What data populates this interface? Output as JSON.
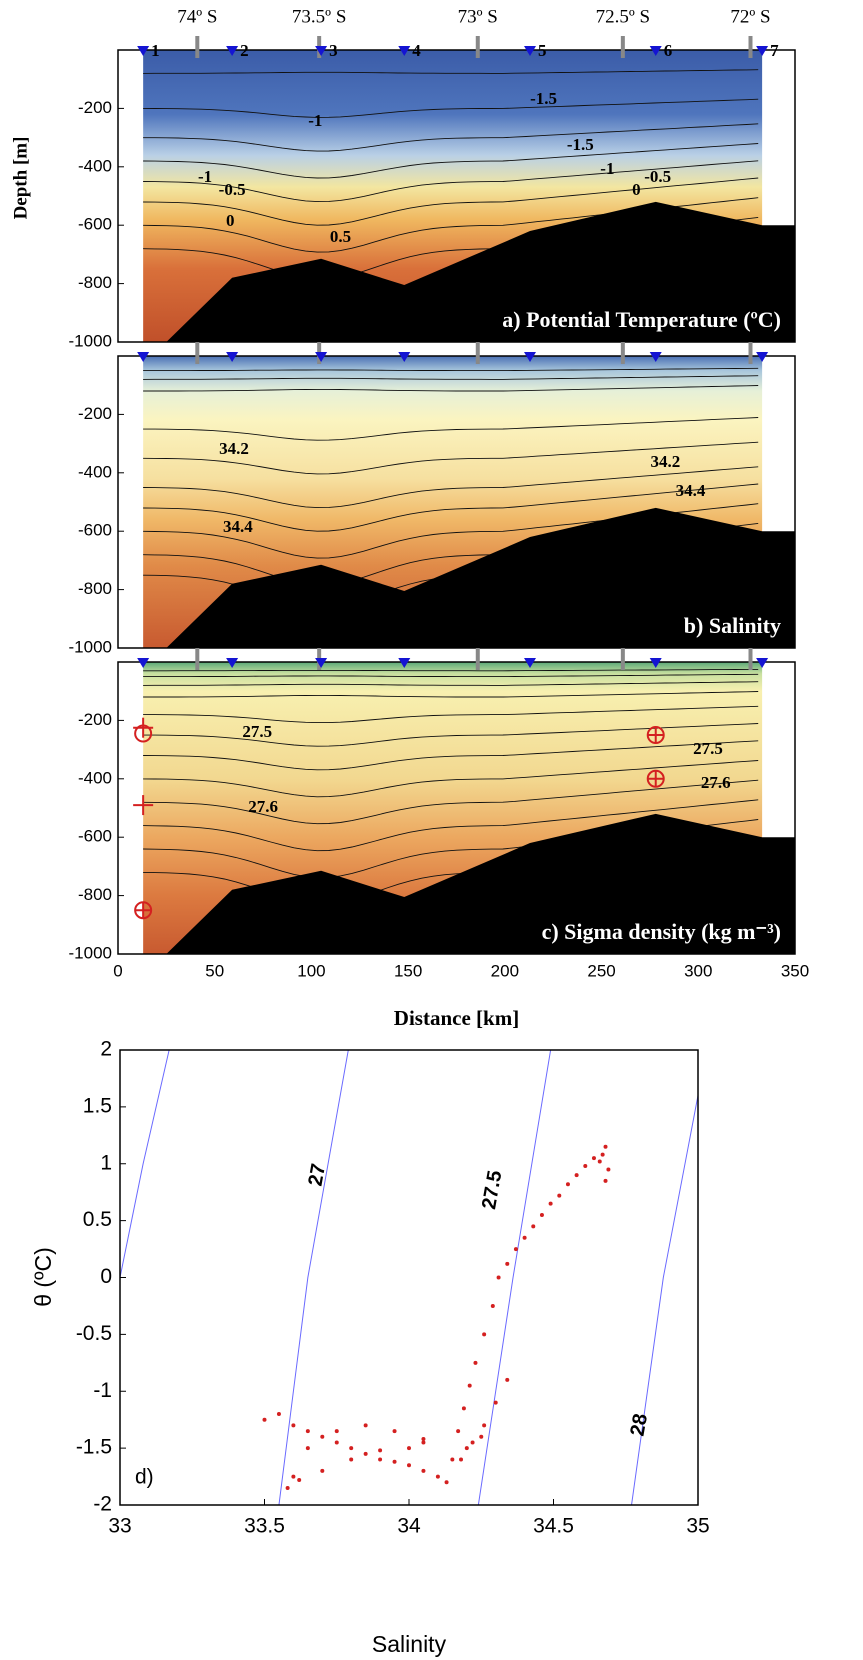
{
  "chart_data": [
    {
      "type": "contour",
      "title": "a) Potential Temperature (ºC)",
      "ylabel": "Depth [m]",
      "xlim": [
        0,
        350
      ],
      "ylim": [
        -1000,
        0
      ],
      "yticks": [
        -200,
        -400,
        -600,
        -800,
        -1000
      ],
      "x2ticks": [
        {
          "value": 41,
          "label": "74º S"
        },
        {
          "value": 104,
          "label": "73.5º S"
        },
        {
          "value": 186,
          "label": "73º S"
        },
        {
          "value": 261,
          "label": "72.5º S"
        },
        {
          "value": 327,
          "label": "72º S"
        }
      ],
      "stations": {
        "names": [
          "1",
          "2",
          "3",
          "4",
          "5",
          "6",
          "7"
        ],
        "x": [
          13,
          59,
          105,
          148,
          213,
          278,
          333
        ],
        "color": "#1414d2"
      },
      "bathymetry": {
        "x": [
          25,
          59,
          105,
          148,
          213,
          278,
          333,
          350
        ],
        "depth": [
          -1000,
          -780,
          -715,
          -805,
          -620,
          -520,
          -600,
          -600
        ]
      },
      "contour_labels": [
        "-1",
        "-1.5",
        "-1.5",
        "-1",
        "-0.5",
        "0",
        "0.5",
        "-1",
        "-0.5",
        "0"
      ]
    },
    {
      "type": "contour",
      "title": "b) Salinity",
      "xlim": [
        0,
        350
      ],
      "ylim": [
        -1000,
        0
      ],
      "yticks": [
        -200,
        -400,
        -600,
        -800,
        -1000
      ],
      "contour_labels": [
        "34.2",
        "34.4",
        "34.2",
        "34.4"
      ]
    },
    {
      "type": "contour",
      "title": "c) Sigma density (kg m⁻³)",
      "xlabel": "Distance [km]",
      "xlim": [
        0,
        350
      ],
      "ylim": [
        -1000,
        0
      ],
      "yticks": [
        -200,
        -400,
        -600,
        -800,
        -1000
      ],
      "xticks": [
        0,
        50,
        100,
        150,
        200,
        250,
        300,
        350
      ],
      "contour_labels": [
        "27.5",
        "27.6",
        "27.5",
        "27.6"
      ],
      "samples": {
        "x": [
          13,
          13,
          13,
          13,
          278,
          278
        ],
        "depth": [
          -225,
          -245,
          -490,
          -850,
          -250,
          -400
        ],
        "symbol": [
          "plus",
          "circle",
          "plus",
          "circle-plus",
          "circle-plus",
          "circle-plus"
        ],
        "color": "#d42020"
      }
    },
    {
      "type": "scatter",
      "label": "d)",
      "xlabel": "Salinity",
      "ylabel": "θ (ºC)",
      "xlim": [
        33,
        35
      ],
      "ylim": [
        -2,
        2
      ],
      "xticks": [
        33,
        33.5,
        34,
        34.5,
        35
      ],
      "yticks": [
        -2,
        -1.5,
        -1,
        -0.5,
        0,
        0.5,
        1,
        1.5,
        2
      ],
      "color": "#d42020",
      "x": [
        34.13,
        34.15,
        34.17,
        34.19,
        34.21,
        34.23,
        34.26,
        34.29,
        34.31,
        34.34,
        34.37,
        34.4,
        34.43,
        34.46,
        34.49,
        34.52,
        34.55,
        34.58,
        34.61,
        34.64,
        34.66,
        34.67,
        34.68,
        34.69,
        34.68,
        34.18,
        34.22,
        34.26,
        34.3,
        34.34,
        34.25,
        34.2,
        33.5,
        33.55,
        33.6,
        33.65,
        33.7,
        33.75,
        33.8,
        33.85,
        33.9,
        33.95,
        34.0,
        34.05,
        34.1,
        33.6,
        33.7,
        33.8,
        33.9,
        34.0,
        34.05,
        33.65,
        33.75,
        33.85,
        33.95,
        34.05,
        33.58,
        33.62
      ],
      "y": [
        -1.8,
        -1.6,
        -1.35,
        -1.15,
        -0.95,
        -0.75,
        -0.5,
        -0.25,
        0.0,
        0.12,
        0.25,
        0.35,
        0.45,
        0.55,
        0.65,
        0.72,
        0.82,
        0.9,
        0.98,
        1.05,
        1.02,
        1.08,
        1.15,
        0.95,
        0.85,
        -1.6,
        -1.45,
        -1.3,
        -1.1,
        -0.9,
        -1.4,
        -1.5,
        -1.25,
        -1.2,
        -1.3,
        -1.35,
        -1.4,
        -1.45,
        -1.5,
        -1.55,
        -1.6,
        -1.62,
        -1.65,
        -1.7,
        -1.75,
        -1.75,
        -1.7,
        -1.6,
        -1.52,
        -1.5,
        -1.45,
        -1.5,
        -1.35,
        -1.3,
        -1.35,
        -1.42,
        -1.85,
        -1.78
      ],
      "isopycnals": {
        "color": "#6a6aff",
        "lines": [
          {
            "label": null,
            "s": [
              33.0,
              33.08,
              33.17
            ],
            "theta": [
              0,
              1,
              2
            ]
          },
          {
            "label": "27",
            "s": [
              33.55,
              33.65,
              33.79
            ],
            "theta": [
              -2,
              0,
              2
            ]
          },
          {
            "label": "27.5",
            "s": [
              34.24,
              34.36,
              34.49
            ],
            "theta": [
              -2,
              0,
              2
            ]
          },
          {
            "label": "28",
            "s": [
              34.77,
              34.88,
              35.0
            ],
            "theta": [
              -2,
              0,
              1.6
            ]
          }
        ]
      }
    }
  ]
}
